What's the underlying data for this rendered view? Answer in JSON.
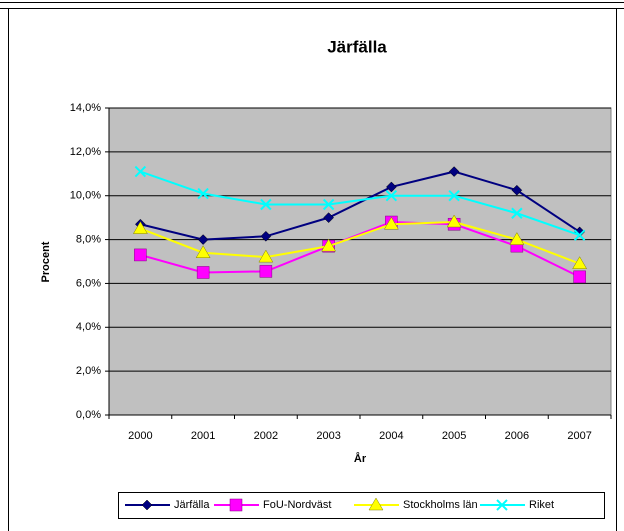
{
  "chart_data": {
    "type": "line",
    "title": "Järfälla",
    "x_label": "År",
    "y_label": "Procent",
    "categories": [
      "2000",
      "2001",
      "2002",
      "2003",
      "2004",
      "2005",
      "2006",
      "2007"
    ],
    "series": [
      {
        "name": "Järfälla",
        "color": "#000080",
        "marker": "diamond",
        "values": [
          8.7,
          8.0,
          8.15,
          9.0,
          10.4,
          11.1,
          10.25,
          8.35
        ]
      },
      {
        "name": "FoU-Nordväst",
        "color": "#ff00ff",
        "marker": "square",
        "values": [
          7.3,
          6.5,
          6.55,
          7.7,
          8.8,
          8.7,
          7.7,
          6.3
        ]
      },
      {
        "name": "Stockholms län",
        "color": "#ffff00",
        "marker": "triangle",
        "values": [
          8.5,
          7.4,
          7.2,
          7.7,
          8.7,
          8.8,
          8.0,
          6.9
        ]
      },
      {
        "name": "Riket",
        "color": "#00ffff",
        "marker": "x",
        "values": [
          11.1,
          10.1,
          9.6,
          9.6,
          10.0,
          10.0,
          9.2,
          8.2
        ]
      }
    ],
    "ylim": [
      0,
      14
    ],
    "yticks": [
      {
        "value": 0,
        "label": "0,0%"
      },
      {
        "value": 2,
        "label": "2,0%"
      },
      {
        "value": 4,
        "label": "4,0%"
      },
      {
        "value": 6,
        "label": "6,0%"
      },
      {
        "value": 8,
        "label": "8,0%"
      },
      {
        "value": 10,
        "label": "10,0%"
      },
      {
        "value": 12,
        "label": "12,0%"
      },
      {
        "value": 14,
        "label": "14,0%"
      }
    ],
    "grid": true,
    "legend": "bottom",
    "plot_background": "#c0c0c0"
  }
}
